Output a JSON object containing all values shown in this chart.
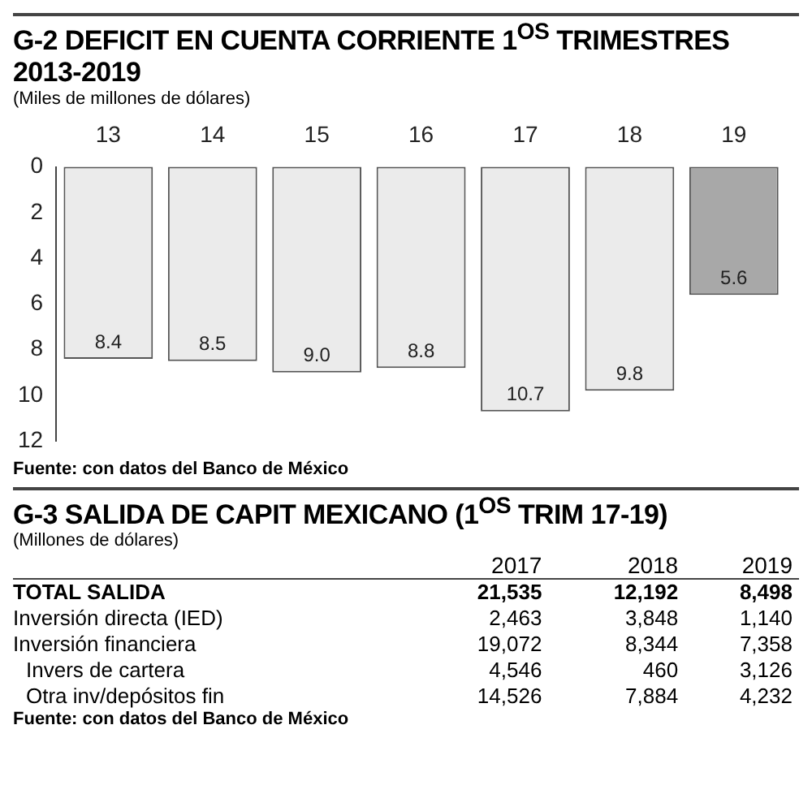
{
  "chart_data": [
    {
      "type": "bar",
      "title": "G-2  DEFICIT EN CUENTA CORRIENTE 1$^{OS}$ TRIMESTRES 2013-2019",
      "ylabel": "(Miles de millones de dólares)",
      "categories": [
        "13",
        "14",
        "15",
        "16",
        "17",
        "18",
        "19"
      ],
      "values": [
        8.4,
        8.5,
        9.0,
        8.8,
        10.7,
        9.8,
        5.6
      ],
      "value_labels": [
        "8.4",
        "8.5",
        "9.0",
        "8.8",
        "10.7",
        "9.8",
        "5.6"
      ],
      "colors": [
        "#ebebeb",
        "#ebebeb",
        "#ebebeb",
        "#ebebeb",
        "#ebebeb",
        "#ebebeb",
        "#a8a8a8"
      ],
      "ylim": [
        12,
        0
      ],
      "yticks": [
        0,
        2,
        4,
        6,
        8,
        10,
        12
      ],
      "grid": false,
      "legend": false,
      "annotations": [
        "Fuente: con datos del Banco de México"
      ]
    },
    {
      "type": "other",
      "title": "G-3 SALIDA DE CAPIT MEXICANO (1$^{OS}$ TRIM 17-19)",
      "ylabel": "(Millones de dólares)",
      "categories": [
        "2017",
        "2018",
        "2019"
      ],
      "data_labels": true,
      "series": [
        {
          "name": "TOTAL SALIDA",
          "values": [
            21535,
            12192,
            8498
          ],
          "value_labels": [
            "21,535",
            "12,192",
            "8,498"
          ]
        },
        {
          "name": "Inversión directa (IED)",
          "values": [
            2463,
            3848,
            1140
          ],
          "value_labels": [
            "2,463",
            "3,848",
            "1,140"
          ]
        },
        {
          "name": "Inversión financiera",
          "values": [
            19072,
            8344,
            7358
          ],
          "value_labels": [
            "19,072",
            "8,344",
            "7,358"
          ]
        },
        {
          "name": "Invers de cartera",
          "values": [
            4546,
            460,
            3126
          ],
          "value_labels": [
            "4,546",
            "460",
            "3,126"
          ]
        },
        {
          "name": "Otra inv/depósitos fin",
          "values": [
            14526,
            7884,
            4232
          ],
          "value_labels": [
            "14,526",
            "7,884",
            "4,232"
          ]
        }
      ],
      "annotations": [
        "Fuente: con datos del Banco de México"
      ]
    }
  ]
}
